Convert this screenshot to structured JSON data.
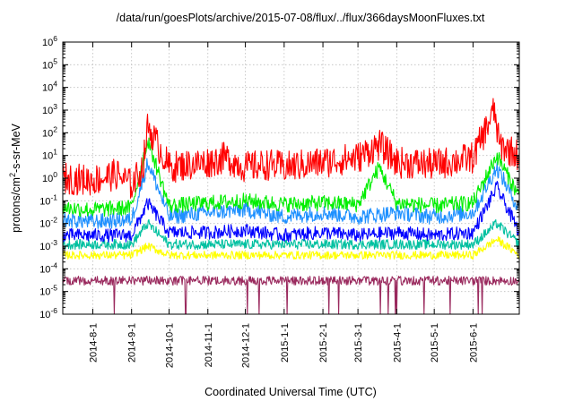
{
  "chart_data": {
    "type": "line",
    "title": "/data/run/goesPlots/archive/2015-07-08/flux/../flux/366daysMoonFluxes.txt",
    "xlabel": "Coordinated Universal Time (UTC)",
    "ylabel_prefix": "protons/cm",
    "ylabel_sup": "2",
    "ylabel_suffix": "-s-sr-MeV",
    "yscale": "log",
    "ylim": [
      1e-06,
      1000000.0
    ],
    "xlim": [
      "2014-07-08",
      "2015-07-08"
    ],
    "grid": true,
    "legend": "none",
    "x_tick_labels": [
      "2014-8-1",
      "2014-9-1",
      "2014-10-1",
      "2014-11-1",
      "2014-12-1",
      "2015-1-1",
      "2015-2-1",
      "2015-3-1",
      "2015-4-1",
      "2015-5-1",
      "2015-6-1"
    ],
    "y_tick_labels": [
      {
        "base": "10",
        "exp": "6"
      },
      {
        "base": "10",
        "exp": "5"
      },
      {
        "base": "10",
        "exp": "4"
      },
      {
        "base": "10",
        "exp": "3"
      },
      {
        "base": "10",
        "exp": "2"
      },
      {
        "base": "10",
        "exp": "1"
      },
      {
        "base": "10",
        "exp": "0"
      },
      {
        "base": "10",
        "exp": "-1"
      },
      {
        "base": "10",
        "exp": "-2"
      },
      {
        "base": "10",
        "exp": "-3"
      },
      {
        "base": "10",
        "exp": "-4"
      },
      {
        "base": "10",
        "exp": "-5"
      },
      {
        "base": "10",
        "exp": "-6"
      }
    ],
    "colors": {
      "red": "#ff0000",
      "green": "#00ee00",
      "lightblue": "#1e90ff",
      "blue": "#0000ff",
      "teal": "#00c0a0",
      "yellow": "#ffff00",
      "purple": "#9a2a5e"
    },
    "series": [
      {
        "color": "red",
        "x": [
          "2014-07-08",
          "2014-08-01",
          "2014-08-20",
          "2014-09-01",
          "2014-09-10",
          "2014-09-14",
          "2014-10-01",
          "2014-11-01",
          "2014-11-15",
          "2014-12-01",
          "2014-12-20",
          "2015-01-01",
          "2015-02-01",
          "2015-03-01",
          "2015-03-18",
          "2015-04-01",
          "2015-05-01",
          "2015-05-20",
          "2015-06-01",
          "2015-06-18",
          "2015-06-22",
          "2015-07-08"
        ],
        "y": [
          1.0,
          0.8,
          1.5,
          0.5,
          3,
          200,
          3,
          5,
          8,
          3,
          4,
          3,
          5,
          8,
          30,
          5,
          4,
          6,
          8,
          1000,
          30,
          10
        ]
      },
      {
        "color": "green",
        "x": [
          "2014-07-08",
          "2014-08-01",
          "2014-09-01",
          "2014-09-14",
          "2014-10-01",
          "2014-11-01",
          "2014-12-01",
          "2015-01-01",
          "2015-02-01",
          "2015-03-01",
          "2015-03-18",
          "2015-04-01",
          "2015-05-01",
          "2015-06-01",
          "2015-06-20",
          "2015-07-08"
        ],
        "y": [
          0.05,
          0.04,
          0.05,
          50,
          0.06,
          0.08,
          0.1,
          0.07,
          0.08,
          0.07,
          3,
          0.08,
          0.06,
          0.08,
          10,
          0.15
        ]
      },
      {
        "color": "lightblue",
        "x": [
          "2014-07-08",
          "2014-08-01",
          "2014-09-01",
          "2014-09-14",
          "2014-10-01",
          "2014-11-01",
          "2014-12-01",
          "2015-01-01",
          "2015-02-01",
          "2015-03-01",
          "2015-04-01",
          "2015-05-01",
          "2015-06-01",
          "2015-06-20",
          "2015-07-08"
        ],
        "y": [
          0.015,
          0.012,
          0.015,
          5,
          0.02,
          0.03,
          0.04,
          0.02,
          0.03,
          0.02,
          0.03,
          0.02,
          0.03,
          3,
          0.04
        ]
      },
      {
        "color": "blue",
        "x": [
          "2014-07-08",
          "2014-08-01",
          "2014-09-01",
          "2014-09-14",
          "2014-10-01",
          "2014-11-01",
          "2014-12-01",
          "2015-01-01",
          "2015-02-01",
          "2015-03-01",
          "2015-04-01",
          "2015-05-01",
          "2015-06-01",
          "2015-06-20",
          "2015-07-08"
        ],
        "y": [
          0.003,
          0.003,
          0.003,
          0.08,
          0.004,
          0.004,
          0.005,
          0.003,
          0.004,
          0.003,
          0.004,
          0.003,
          0.004,
          0.4,
          0.004
        ]
      },
      {
        "color": "teal",
        "x": [
          "2014-07-08",
          "2014-09-01",
          "2014-09-14",
          "2014-10-01",
          "2015-01-01",
          "2015-04-01",
          "2015-06-01",
          "2015-06-20",
          "2015-07-08"
        ],
        "y": [
          0.0012,
          0.0012,
          0.01,
          0.0012,
          0.0012,
          0.0012,
          0.0012,
          0.01,
          0.0012
        ]
      },
      {
        "color": "yellow",
        "x": [
          "2014-07-08",
          "2014-09-01",
          "2014-09-14",
          "2014-10-01",
          "2015-01-01",
          "2015-04-01",
          "2015-06-01",
          "2015-06-20",
          "2015-07-08"
        ],
        "y": [
          0.0004,
          0.0004,
          0.001,
          0.0004,
          0.0004,
          0.0004,
          0.0004,
          0.002,
          0.0004
        ]
      },
      {
        "color": "purple",
        "x": [
          "2014-07-08",
          "2014-09-01",
          "2014-10-01",
          "2015-01-01",
          "2015-04-01",
          "2015-06-01",
          "2015-07-08"
        ],
        "y": [
          3e-05,
          3e-05,
          3e-05,
          3e-05,
          3e-05,
          3e-05,
          3e-05
        ]
      }
    ]
  }
}
